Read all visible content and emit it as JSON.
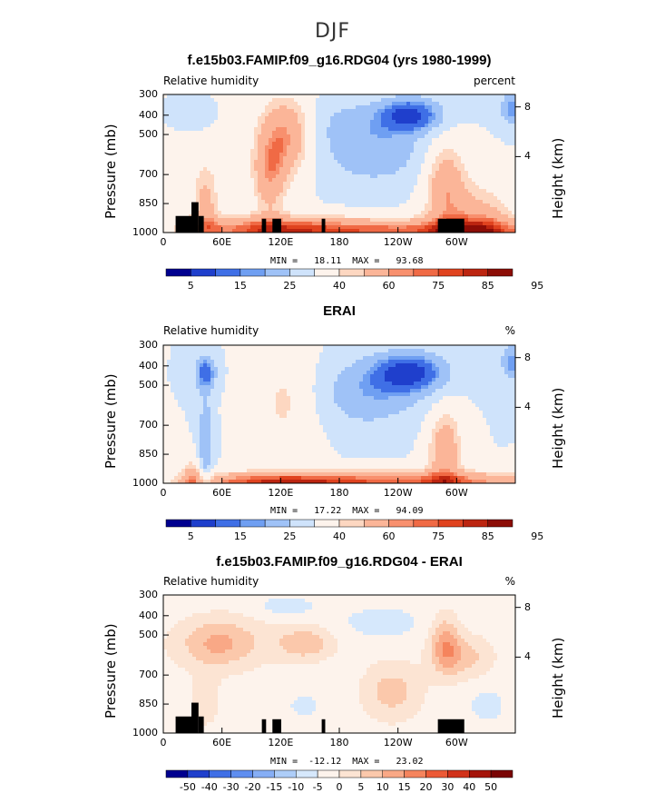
{
  "figure": {
    "season": "DJF"
  },
  "palette_rh": [
    "#00008f",
    "#1f3fcc",
    "#3f6fe6",
    "#6f9ff2",
    "#9fc2f7",
    "#cfe3fb",
    "#fdf3ec",
    "#fdd7c1",
    "#fbb598",
    "#f8906e",
    "#f06a45",
    "#e0431f",
    "#bc2510",
    "#8c0d06"
  ],
  "palette_diff": [
    "#00008f",
    "#1f3fcc",
    "#3f6fe6",
    "#5f8ef0",
    "#86aef5",
    "#adcdf8",
    "#d6e8fc",
    "#fdf3ec",
    "#fce4d3",
    "#fbc8ab",
    "#f9a886",
    "#f5845d",
    "#ec5a36",
    "#d1321a",
    "#a5140a",
    "#7a0504"
  ],
  "chart_data": [
    {
      "type": "heatmap",
      "title": "f.e15b03.FAMIP.f09_g16.RDG04 (yrs 1980-1999)",
      "left_label": "Relative humidity",
      "units": "percent",
      "ylabel": "Pressure (mb)",
      "ylabel2": "Height (km)",
      "yticks": [
        "300",
        "400",
        "500",
        "700",
        "850",
        "1000"
      ],
      "htick_labels": [
        "8",
        "4"
      ],
      "xticks": [
        "0",
        "60E",
        "120E",
        "180",
        "120W",
        "60W"
      ],
      "min_max": "MIN =   18.11  MAX =   93.68",
      "colorbar_labels": [
        "5",
        "15",
        "25",
        "40",
        "60",
        "75",
        "85",
        "95"
      ],
      "has_topography": true
    },
    {
      "type": "heatmap",
      "title": "ERAI",
      "left_label": "Relative humidity",
      "units": "%",
      "ylabel": "Pressure (mb)",
      "ylabel2": "Height (km)",
      "yticks": [
        "300",
        "400",
        "500",
        "700",
        "850",
        "1000"
      ],
      "htick_labels": [
        "8",
        "4"
      ],
      "xticks": [
        "0",
        "60E",
        "120E",
        "180",
        "120W",
        "60W"
      ],
      "min_max": "MIN =   17.22  MAX =   94.09",
      "colorbar_labels": [
        "5",
        "15",
        "25",
        "40",
        "60",
        "75",
        "85",
        "95"
      ],
      "has_topography": false
    },
    {
      "type": "heatmap",
      "title": "f.e15b03.FAMIP.f09_g16.RDG04 - ERAI",
      "left_label": "Relative humidity",
      "units": "%",
      "ylabel": "Pressure (mb)",
      "ylabel2": "Height (km)",
      "yticks": [
        "300",
        "400",
        "500",
        "700",
        "850",
        "1000"
      ],
      "htick_labels": [
        "8",
        "4"
      ],
      "xticks": [
        "0",
        "60E",
        "120E",
        "180",
        "120W",
        "60W"
      ],
      "min_max": "MIN =  -12.12  MAX =   23.02",
      "colorbar_labels": [
        "-50",
        "-40",
        "-30",
        "-20",
        "-15",
        "-10",
        "-5",
        "0",
        "5",
        "10",
        "15",
        "20",
        "30",
        "40",
        "50"
      ],
      "has_topography": true
    }
  ]
}
